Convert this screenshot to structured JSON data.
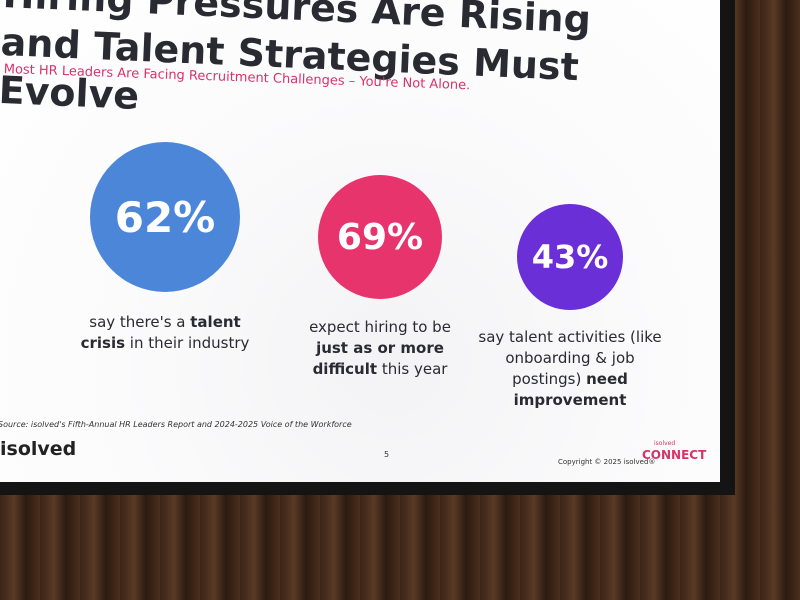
{
  "slide": {
    "title": "Hiring Pressures Are Rising and Talent Strategies Must Evolve",
    "subtitle": "Most HR Leaders Are Facing Recruitment Challenges – You're Not Alone.",
    "stats": [
      {
        "value": "62%",
        "color": "#4b86d9",
        "description": [
          {
            "text": "say there's a ",
            "bold": false
          },
          {
            "text": "talent crisis",
            "bold": true
          },
          {
            "text": " in their industry",
            "bold": false
          }
        ]
      },
      {
        "value": "69%",
        "color": "#e8346c",
        "description": [
          {
            "text": "expect hiring to be ",
            "bold": false
          },
          {
            "text": "just as or more difficult",
            "bold": true
          },
          {
            "text": " this year",
            "bold": false
          }
        ]
      },
      {
        "value": "43%",
        "color": "#6b2fd8",
        "description": [
          {
            "text": "say talent activities (like onboarding & job postings) ",
            "bold": false
          },
          {
            "text": "need improvement",
            "bold": true
          }
        ]
      }
    ],
    "source": "Source: isolved's Fifth-Annual HR Leaders Report and 2024-2025 Voice of the Workforce",
    "logo": "isolved",
    "page_number": "5",
    "copyright": "Copyright © 2025 isolved®",
    "event_brand": "isolved",
    "event_name": "CONNECT"
  }
}
